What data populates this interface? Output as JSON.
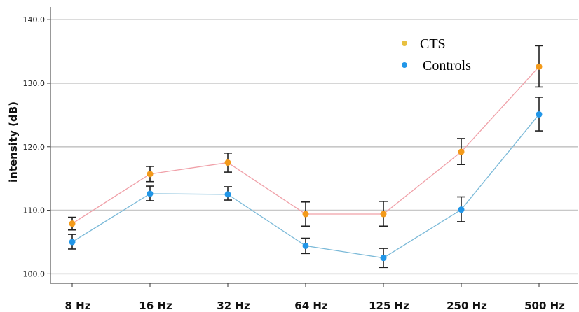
{
  "chart_data": {
    "type": "line",
    "title": "",
    "xlabel": "",
    "ylabel": "intensity (dB)",
    "categories": [
      "8 Hz",
      "16 Hz",
      "32 Hz",
      "64 Hz",
      "125 Hz",
      "250 Hz",
      "500 Hz"
    ],
    "ylim": [
      98.5,
      142.0
    ],
    "yticks": [
      "100.0",
      "110.0",
      "120.0",
      "130.0",
      "140.0"
    ],
    "grid": "horizontal",
    "legend_position": "top-right",
    "error_bars": true,
    "series": [
      {
        "name": "CTS",
        "marker_color": "#f39a1a",
        "legend_color": "#e8c040",
        "line_color": "#f0a0a8",
        "values": [
          107.9,
          115.7,
          117.5,
          109.4,
          109.4,
          119.2,
          132.6
        ],
        "err_low": [
          106.9,
          114.5,
          116.0,
          107.5,
          107.5,
          117.2,
          129.4
        ],
        "err_high": [
          108.9,
          116.9,
          119.0,
          111.3,
          111.4,
          121.3,
          135.9
        ]
      },
      {
        "name": "Controls",
        "marker_color": "#2196e8",
        "legend_color": "#2196e8",
        "line_color": "#7ab9d8",
        "values": [
          105.0,
          112.6,
          112.5,
          104.4,
          102.5,
          110.1,
          125.1
        ],
        "err_low": [
          103.9,
          111.5,
          111.6,
          103.2,
          101.0,
          108.2,
          122.5
        ],
        "err_high": [
          106.2,
          113.8,
          113.7,
          105.6,
          104.0,
          112.1,
          127.8
        ]
      }
    ]
  }
}
